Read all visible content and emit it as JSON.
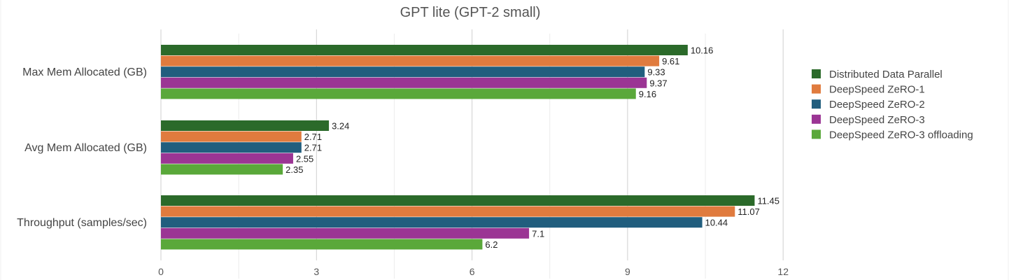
{
  "chart_data": {
    "type": "bar",
    "orientation": "horizontal",
    "title": "GPT lite (GPT-2 small)",
    "xlabel": "",
    "ylabel": "",
    "xlim": [
      0,
      12
    ],
    "ticks": [
      0,
      3,
      6,
      9,
      12
    ],
    "categories": [
      "Max Mem Allocated (GB)",
      "Avg Mem Allocated (GB)",
      "Throughput (samples/sec)"
    ],
    "series": [
      {
        "name": "Distributed Data Parallel",
        "color": "#2b6a2a",
        "values": [
          10.16,
          3.24,
          11.45
        ]
      },
      {
        "name": "DeepSpeed ZeRO-1",
        "color": "#e07b3e",
        "values": [
          9.61,
          2.71,
          11.07
        ]
      },
      {
        "name": "DeepSpeed ZeRO-2",
        "color": "#215e7e",
        "values": [
          9.33,
          2.71,
          10.44
        ]
      },
      {
        "name": "DeepSpeed ZeRO-3",
        "color": "#9b3594",
        "values": [
          9.37,
          2.55,
          7.1
        ]
      },
      {
        "name": "DeepSpeed ZeRO-3 offloading",
        "color": "#5aa83a",
        "values": [
          9.16,
          2.35,
          6.2
        ]
      }
    ],
    "grid": true,
    "legend_position": "right"
  }
}
